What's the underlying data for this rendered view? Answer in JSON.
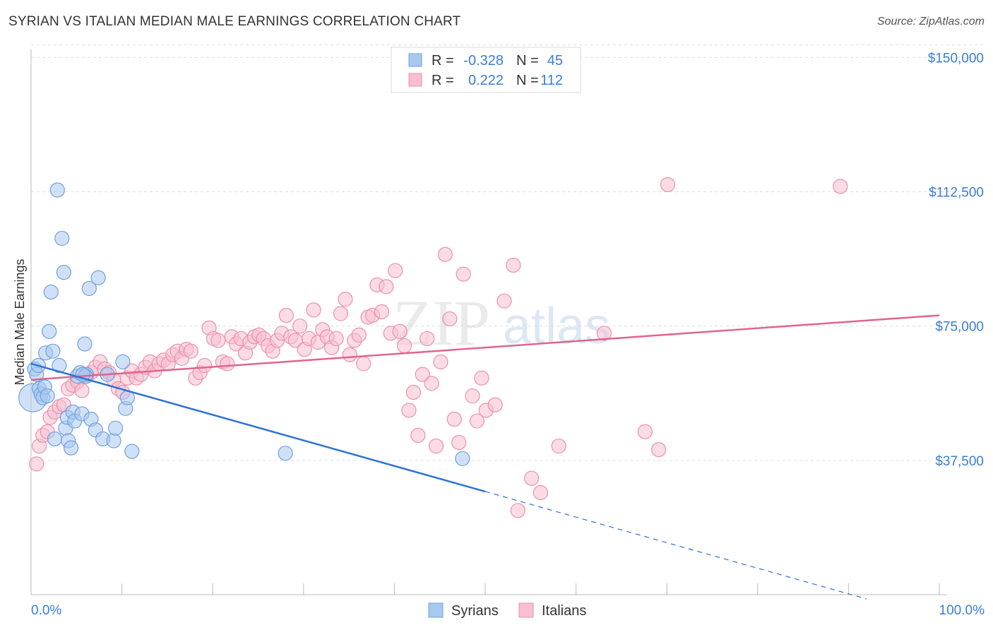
{
  "header": {
    "title": "SYRIAN VS ITALIAN MEDIAN MALE EARNINGS CORRELATION CHART",
    "source": "Source: ZipAtlas.com"
  },
  "watermark": {
    "zip": "ZIP",
    "atlas": "atlas"
  },
  "legend": {
    "rows": [
      {
        "r_label": "R =",
        "r_value": "-0.328",
        "n_label": "N =",
        "n_value": "45"
      },
      {
        "r_label": "R =",
        "r_value": "0.222",
        "n_label": "N =",
        "n_value": "112"
      }
    ]
  },
  "bottom_legend": {
    "syrians": "Syrians",
    "italians": "Italians"
  },
  "colors": {
    "syrians_fill": "#a9c8f0",
    "syrians_stroke": "#6fa0e0",
    "syrians_line": "#2f72d6",
    "italians_fill": "#f7bfd0",
    "italians_stroke": "#ec8fae",
    "italians_line": "#e0648f",
    "tick_text": "#3b7dd8",
    "grid": "#dddddd"
  },
  "chart_data": {
    "type": "scatter",
    "title": "SYRIAN VS ITALIAN MEDIAN MALE EARNINGS CORRELATION CHART",
    "xlabel": "",
    "ylabel": "Median Male Earnings",
    "xlim": [
      0,
      100
    ],
    "ylim": [
      0,
      155000
    ],
    "x_tick_labels": [
      "0.0%",
      "100.0%"
    ],
    "y_ticks": [
      37500,
      75000,
      112500,
      150000
    ],
    "y_tick_labels": [
      "$37,500",
      "$75,000",
      "$112,500",
      "$150,000"
    ],
    "series": [
      {
        "name": "Syrians",
        "r": -0.328,
        "n": 45,
        "trend": {
          "x0": 0,
          "y0": 64500,
          "x1": 50,
          "y1": 28800,
          "dash_to_x": 92
        },
        "points": [
          [
            0.2,
            55000,
            20
          ],
          [
            0.4,
            63000,
            10
          ],
          [
            0.6,
            61500,
            10
          ],
          [
            0.8,
            64000,
            10
          ],
          [
            0.9,
            57500,
            10
          ],
          [
            1.1,
            56000,
            10
          ],
          [
            1.3,
            55000,
            10
          ],
          [
            1.5,
            58000,
            10
          ],
          [
            1.6,
            67500,
            10
          ],
          [
            1.8,
            55500,
            10
          ],
          [
            2.0,
            73500,
            10
          ],
          [
            2.2,
            84500,
            10
          ],
          [
            2.4,
            68000,
            10
          ],
          [
            2.6,
            43500,
            10
          ],
          [
            2.9,
            113000,
            10
          ],
          [
            3.1,
            64000,
            10
          ],
          [
            3.4,
            99500,
            10
          ],
          [
            3.6,
            90000,
            10
          ],
          [
            3.8,
            46500,
            10
          ],
          [
            4.0,
            49500,
            10
          ],
          [
            4.1,
            43000,
            10
          ],
          [
            4.4,
            41000,
            10
          ],
          [
            4.6,
            51000,
            10
          ],
          [
            4.8,
            48500,
            10
          ],
          [
            5.1,
            61000,
            10
          ],
          [
            5.4,
            62000,
            10
          ],
          [
            5.6,
            50500,
            10
          ],
          [
            5.9,
            70000,
            10
          ],
          [
            6.1,
            61500,
            10
          ],
          [
            6.4,
            85500,
            10
          ],
          [
            6.6,
            49000,
            10
          ],
          [
            7.1,
            46000,
            10
          ],
          [
            7.4,
            88500,
            10
          ],
          [
            7.9,
            43500,
            10
          ],
          [
            8.4,
            61500,
            10
          ],
          [
            9.1,
            43000,
            10
          ],
          [
            9.3,
            46500,
            10
          ],
          [
            10.1,
            65000,
            10
          ],
          [
            10.4,
            52000,
            10
          ],
          [
            10.6,
            55000,
            10
          ],
          [
            11.1,
            40000,
            10
          ],
          [
            6.0,
            61000,
            10
          ],
          [
            5.7,
            61500,
            10
          ],
          [
            28.0,
            39500,
            10
          ],
          [
            47.5,
            38000,
            10
          ]
        ]
      },
      {
        "name": "Italians",
        "r": 0.222,
        "n": 112,
        "trend": {
          "x0": 0,
          "y0": 60000,
          "x1": 100,
          "y1": 78000
        },
        "points": [
          [
            0.6,
            36500,
            10
          ],
          [
            0.9,
            41500,
            10
          ],
          [
            1.3,
            44500,
            10
          ],
          [
            1.8,
            45500,
            10
          ],
          [
            2.1,
            49500,
            10
          ],
          [
            2.6,
            51000,
            10
          ],
          [
            3.1,
            52500,
            10
          ],
          [
            3.6,
            53000,
            10
          ],
          [
            4.1,
            57500,
            10
          ],
          [
            4.6,
            58500,
            10
          ],
          [
            5.1,
            59500,
            10
          ],
          [
            5.6,
            57000,
            10
          ],
          [
            6.1,
            61000,
            10
          ],
          [
            6.6,
            62000,
            10
          ],
          [
            7.1,
            63500,
            10
          ],
          [
            7.6,
            65000,
            10
          ],
          [
            8.1,
            63000,
            10
          ],
          [
            8.6,
            62000,
            10
          ],
          [
            9.1,
            60000,
            10
          ],
          [
            9.6,
            57500,
            10
          ],
          [
            10.1,
            56500,
            10
          ],
          [
            10.6,
            60500,
            10
          ],
          [
            11.1,
            62500,
            10
          ],
          [
            11.6,
            60500,
            10
          ],
          [
            12.1,
            61500,
            10
          ],
          [
            12.6,
            63500,
            10
          ],
          [
            13.1,
            65000,
            10
          ],
          [
            13.6,
            62500,
            10
          ],
          [
            14.1,
            64500,
            10
          ],
          [
            14.6,
            65500,
            10
          ],
          [
            15.1,
            64500,
            10
          ],
          [
            15.6,
            67000,
            10
          ],
          [
            16.1,
            68000,
            10
          ],
          [
            16.6,
            66000,
            10
          ],
          [
            17.1,
            68500,
            10
          ],
          [
            17.6,
            68000,
            10
          ],
          [
            18.1,
            60500,
            10
          ],
          [
            18.6,
            62000,
            10
          ],
          [
            19.1,
            64000,
            10
          ],
          [
            19.6,
            74500,
            10
          ],
          [
            20.1,
            71500,
            10
          ],
          [
            20.6,
            71000,
            10
          ],
          [
            21.1,
            65000,
            10
          ],
          [
            21.6,
            64500,
            10
          ],
          [
            22.1,
            72000,
            10
          ],
          [
            22.6,
            70000,
            10
          ],
          [
            23.1,
            71500,
            10
          ],
          [
            23.6,
            67500,
            10
          ],
          [
            24.1,
            70500,
            10
          ],
          [
            24.6,
            72000,
            10
          ],
          [
            25.1,
            72500,
            10
          ],
          [
            25.6,
            71500,
            10
          ],
          [
            26.1,
            69500,
            10
          ],
          [
            26.6,
            68000,
            10
          ],
          [
            27.1,
            71000,
            10
          ],
          [
            27.6,
            73000,
            10
          ],
          [
            28.1,
            78000,
            10
          ],
          [
            28.6,
            72000,
            10
          ],
          [
            29.1,
            71000,
            10
          ],
          [
            29.6,
            75000,
            10
          ],
          [
            30.1,
            68500,
            10
          ],
          [
            30.6,
            71500,
            10
          ],
          [
            31.1,
            79500,
            10
          ],
          [
            31.6,
            70500,
            10
          ],
          [
            32.1,
            74000,
            10
          ],
          [
            32.6,
            72000,
            10
          ],
          [
            33.1,
            69000,
            10
          ],
          [
            33.6,
            71500,
            10
          ],
          [
            34.1,
            78500,
            10
          ],
          [
            34.6,
            82500,
            10
          ],
          [
            35.1,
            67000,
            10
          ],
          [
            35.6,
            71000,
            10
          ],
          [
            36.1,
            72500,
            10
          ],
          [
            36.6,
            64500,
            10
          ],
          [
            37.1,
            77500,
            10
          ],
          [
            37.6,
            78000,
            10
          ],
          [
            38.1,
            86500,
            10
          ],
          [
            38.6,
            79000,
            10
          ],
          [
            39.1,
            86000,
            10
          ],
          [
            39.6,
            73000,
            10
          ],
          [
            40.1,
            90500,
            10
          ],
          [
            40.6,
            73500,
            10
          ],
          [
            41.1,
            69500,
            10
          ],
          [
            41.6,
            51500,
            10
          ],
          [
            42.1,
            56500,
            10
          ],
          [
            42.6,
            44500,
            10
          ],
          [
            43.1,
            61500,
            10
          ],
          [
            43.6,
            71500,
            10
          ],
          [
            44.1,
            59000,
            10
          ],
          [
            44.6,
            41500,
            10
          ],
          [
            45.1,
            65000,
            10
          ],
          [
            45.6,
            95000,
            10
          ],
          [
            46.1,
            77000,
            10
          ],
          [
            46.6,
            49000,
            10
          ],
          [
            47.1,
            42500,
            10
          ],
          [
            47.6,
            89500,
            10
          ],
          [
            48.6,
            55500,
            10
          ],
          [
            49.1,
            48500,
            10
          ],
          [
            49.6,
            60500,
            10
          ],
          [
            50.1,
            51500,
            10
          ],
          [
            51.1,
            53000,
            10
          ],
          [
            52.1,
            82000,
            10
          ],
          [
            53.1,
            92000,
            10
          ],
          [
            53.6,
            23500,
            10
          ],
          [
            55.1,
            32500,
            10
          ],
          [
            56.1,
            28500,
            10
          ],
          [
            58.1,
            41500,
            10
          ],
          [
            63.1,
            73000,
            10
          ],
          [
            67.6,
            45500,
            10
          ],
          [
            69.1,
            40500,
            10
          ],
          [
            70.1,
            114500,
            10
          ],
          [
            89.1,
            114000,
            10
          ]
        ]
      }
    ]
  }
}
